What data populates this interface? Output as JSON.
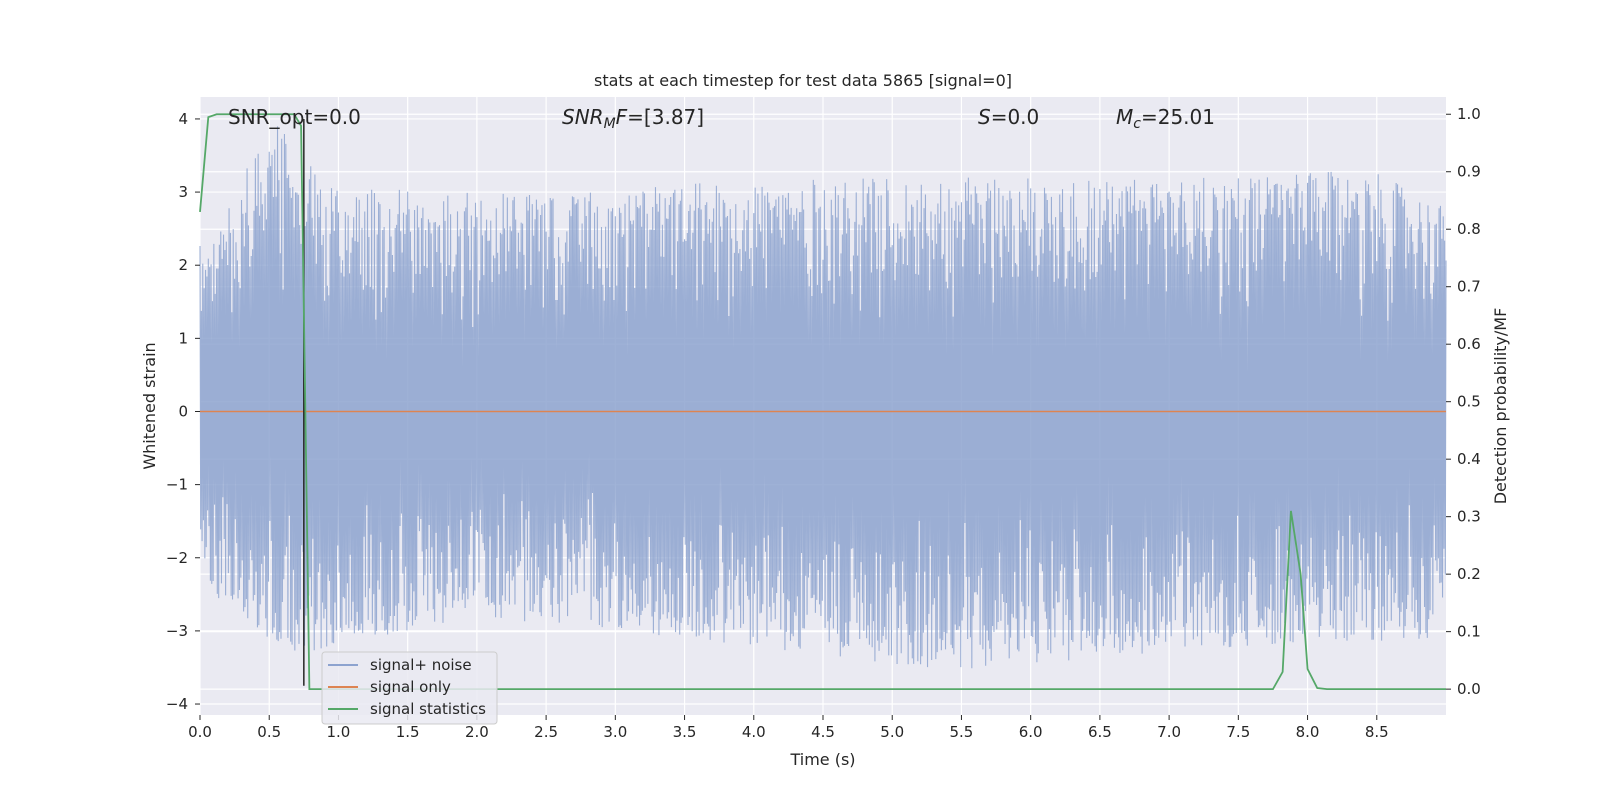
{
  "chart_data": {
    "type": "line",
    "title": "stats at each timestep for test data 5865 [signal=0]",
    "xlabel": "Time (s)",
    "ylabel": "Whitened strain",
    "y2label": "Detection probability/MF",
    "xlim": [
      0,
      9.0
    ],
    "ylim": [
      -4.15,
      4.3
    ],
    "y2lim": [
      -0.045,
      1.03
    ],
    "x_ticks": [
      0.0,
      0.5,
      1.0,
      1.5,
      2.0,
      2.5,
      3.0,
      3.5,
      4.0,
      4.5,
      5.0,
      5.5,
      6.0,
      6.5,
      7.0,
      7.5,
      8.0,
      8.5
    ],
    "y_ticks": [
      4,
      3,
      2,
      1,
      0,
      -1,
      -2,
      -3,
      -4
    ],
    "y2_ticks": [
      1.0,
      0.9,
      0.8,
      0.7,
      0.6,
      0.5,
      0.4,
      0.3,
      0.2,
      0.1,
      0.0
    ],
    "grid": true,
    "legend_position": "lower-left",
    "annotations": [
      {
        "prefix": "SNR_opt",
        "sub": "",
        "value": "=0.0"
      },
      {
        "prefix": "SNR",
        "sub": "M",
        "suffix": "F",
        "value": "=[3.87]"
      },
      {
        "prefix": "S",
        "sub": "",
        "value": "=0.0"
      },
      {
        "prefix": "M",
        "sub": "c",
        "value": "=25.01"
      }
    ],
    "series": [
      {
        "name": "signal+ noise",
        "color": "#8da3cf",
        "axis": "left",
        "style": "dense-noise",
        "envelope_upper": [
          [
            0.0,
            2.4
          ],
          [
            0.05,
            2.2
          ],
          [
            0.27,
            3.15
          ],
          [
            0.58,
            4.0
          ],
          [
            1.05,
            2.9
          ],
          [
            1.25,
            3.05
          ],
          [
            2.55,
            2.95
          ],
          [
            3.8,
            3.15
          ],
          [
            5.05,
            3.2
          ],
          [
            7.15,
            3.2
          ],
          [
            8.45,
            3.3
          ],
          [
            9.0,
            2.8
          ]
        ],
        "envelope_lower": [
          [
            0.0,
            -1.6
          ],
          [
            0.08,
            -2.6
          ],
          [
            0.6,
            -3.3
          ],
          [
            0.85,
            -3.3
          ],
          [
            2.0,
            -2.8
          ],
          [
            3.5,
            -3.1
          ],
          [
            5.45,
            -3.55
          ],
          [
            6.9,
            -3.3
          ],
          [
            8.9,
            -3.1
          ],
          [
            9.0,
            -2.4
          ]
        ]
      },
      {
        "name": "signal only",
        "color": "#dd8452",
        "axis": "left",
        "x": [
          0.0,
          9.0
        ],
        "y": [
          0.0,
          0.0
        ]
      },
      {
        "name": "signal statistics",
        "color": "#55a868",
        "axis": "right",
        "x": [
          0.0,
          0.06,
          0.12,
          0.2,
          0.3,
          0.4,
          0.5,
          0.6,
          0.68,
          0.73,
          0.76,
          0.79,
          0.82,
          0.9,
          1.0,
          2.0,
          3.0,
          4.0,
          5.0,
          6.0,
          7.0,
          7.5,
          7.75,
          7.82,
          7.88,
          7.95,
          8.0,
          8.07,
          8.14,
          8.3,
          9.0
        ],
        "y": [
          0.83,
          0.995,
          1.0,
          1.0,
          1.0,
          1.0,
          1.0,
          1.0,
          1.0,
          0.98,
          0.5,
          0.0,
          0.0,
          0.0,
          0.0,
          0.0,
          0.0,
          0.0,
          0.0,
          0.0,
          0.0,
          0.0,
          0.0,
          0.03,
          0.31,
          0.2,
          0.035,
          0.002,
          0.0,
          0.0,
          0.0
        ]
      }
    ],
    "vertical_marker": {
      "color": "#262626",
      "x": 0.75,
      "y_from": 4.0,
      "y_to": -3.75
    }
  }
}
